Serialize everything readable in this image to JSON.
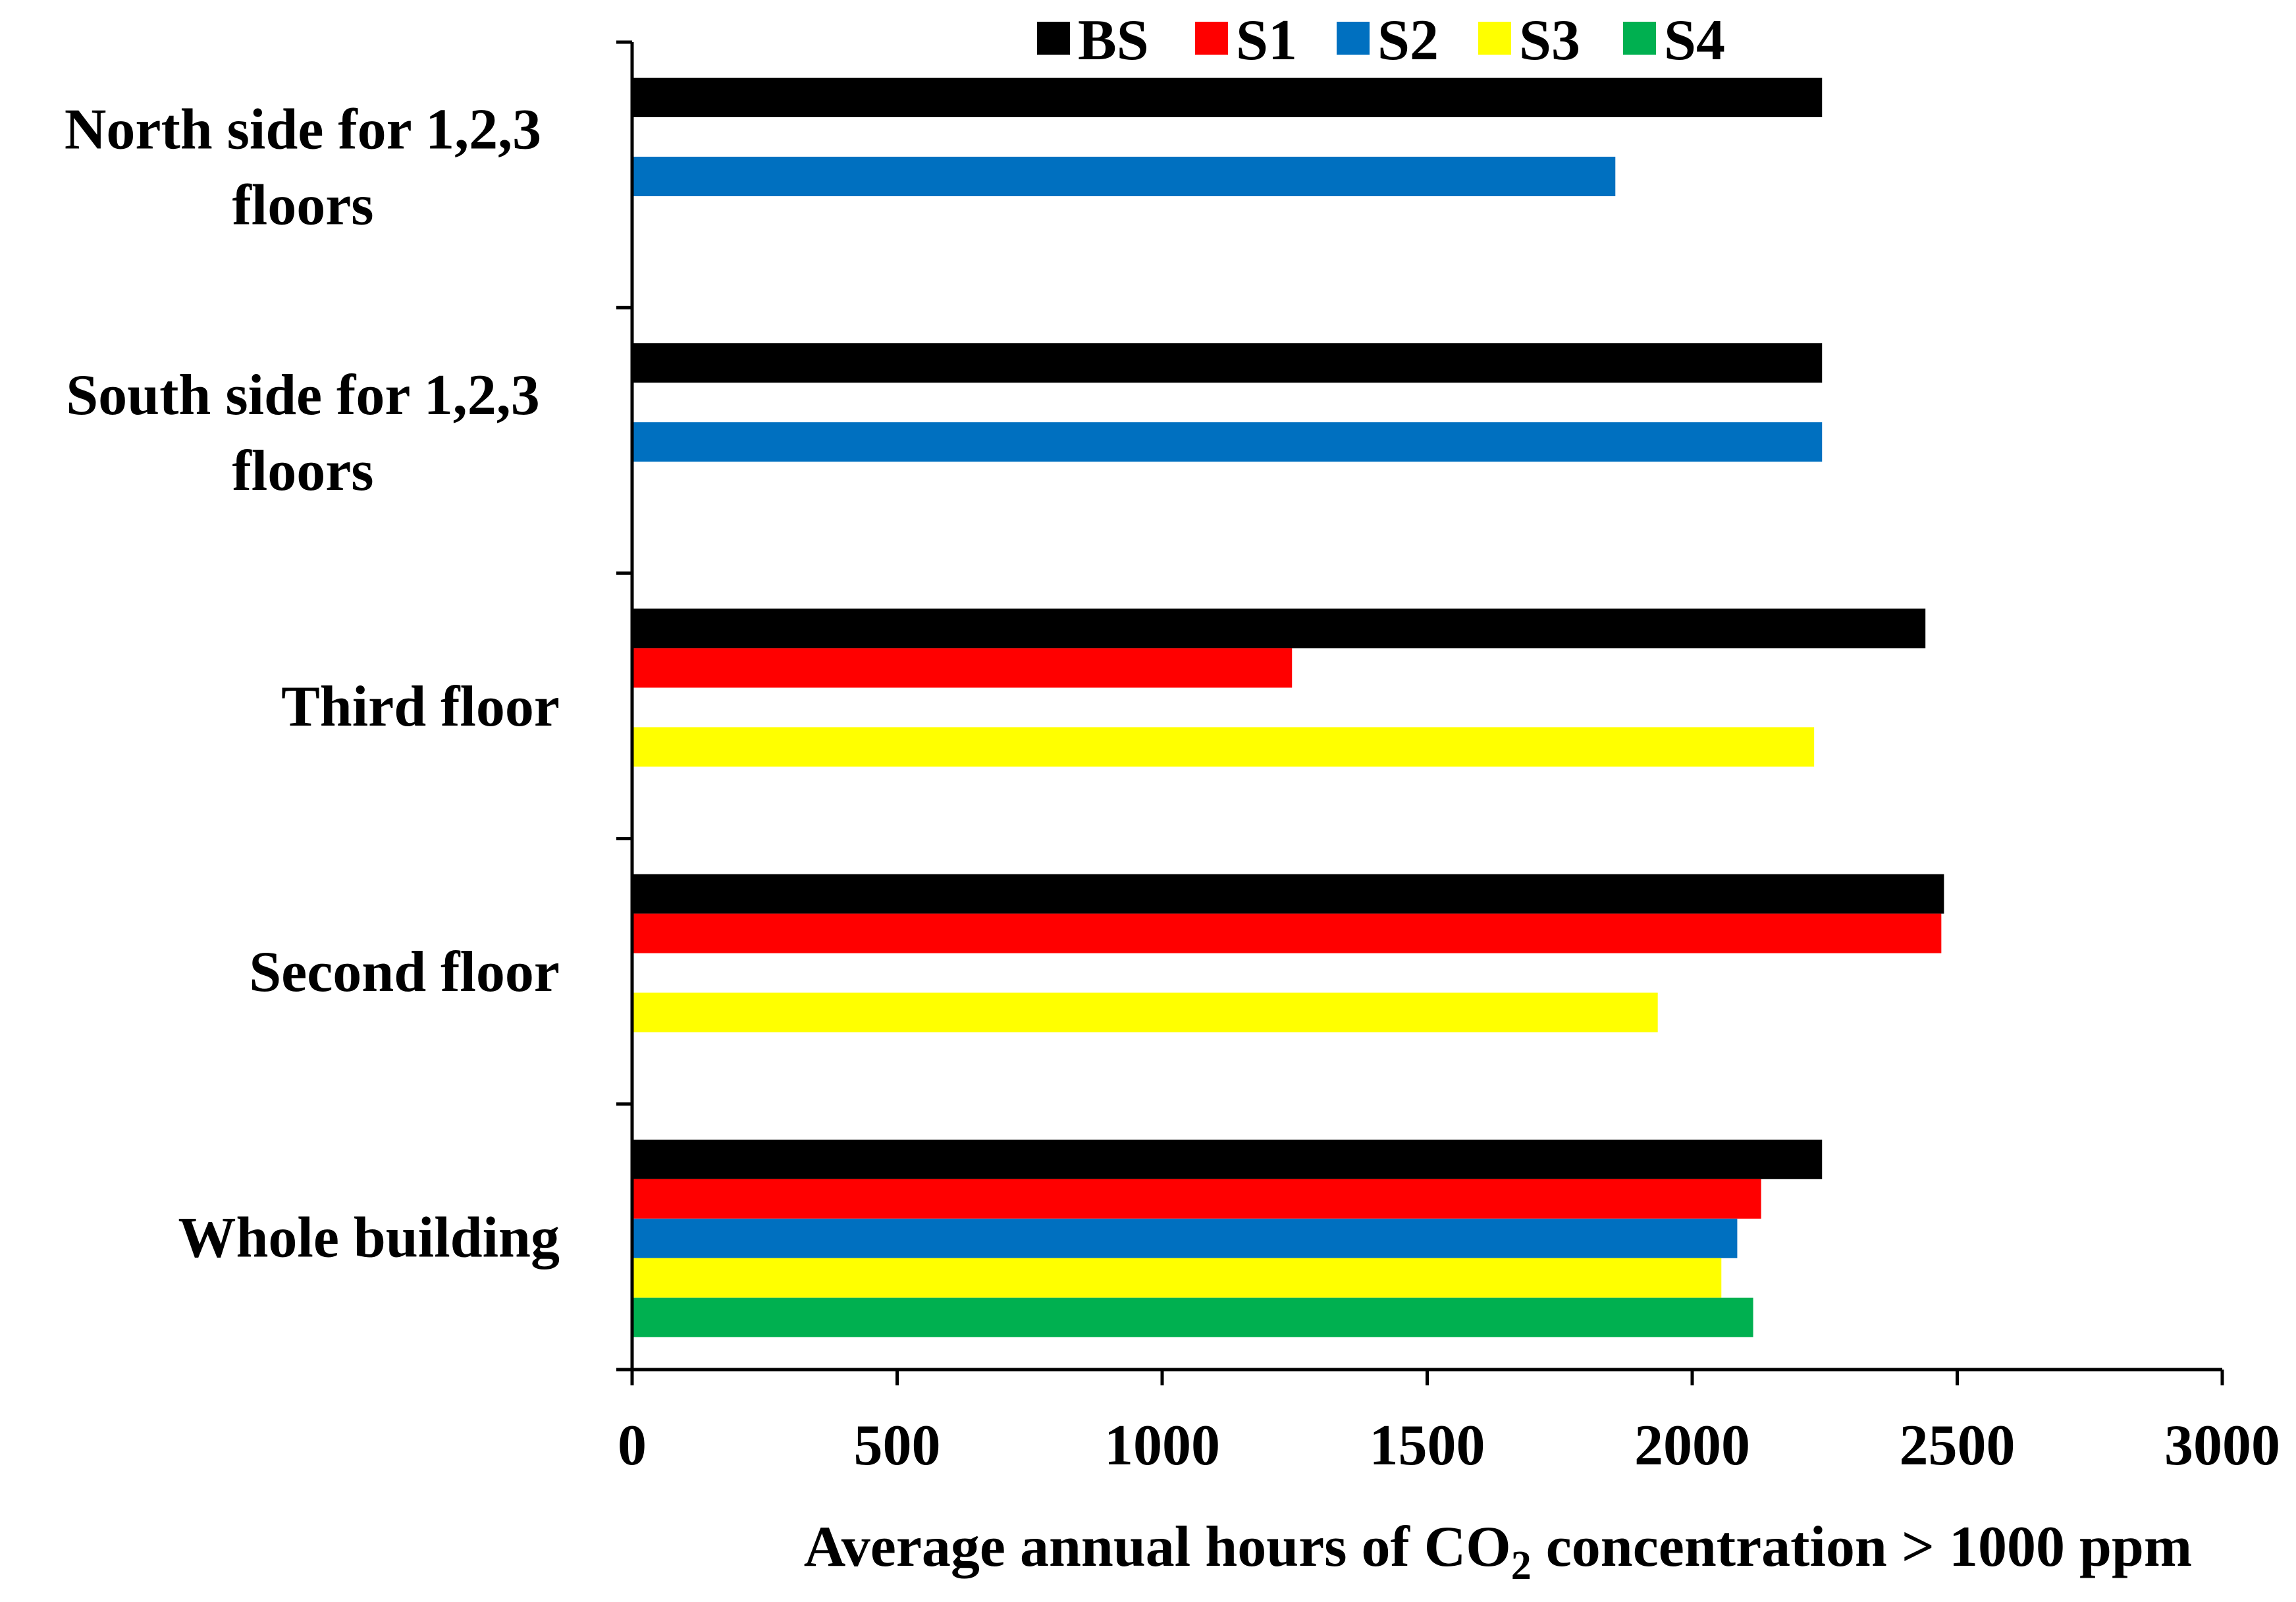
{
  "chart_data": {
    "type": "bar",
    "orientation": "horizontal",
    "title": "",
    "xlabel": {
      "prefix": "Average annual hours of CO",
      "subscript": "2",
      "suffix": " concentration > 1000 ppm"
    },
    "ylabel": "",
    "xlim": [
      0,
      3000
    ],
    "xticks": [
      "0",
      "500",
      "1000",
      "1500",
      "2000",
      "2500",
      "3000"
    ],
    "categories": [
      {
        "line1": "North side for 1,2,3",
        "line2": "floors"
      },
      {
        "line1": "South side for 1,2,3",
        "line2": "floors"
      },
      {
        "line1": "Third floor",
        "line2": ""
      },
      {
        "line1": "Second floor",
        "line2": ""
      },
      {
        "line1": "Whole building",
        "line2": ""
      }
    ],
    "series": [
      {
        "name": "BS",
        "color": "#000000",
        "values": [
          2245,
          2245,
          2440,
          2475,
          2245
        ]
      },
      {
        "name": "S1",
        "color": "#ff0000",
        "values": [
          null,
          null,
          1245,
          2470,
          2130
        ]
      },
      {
        "name": "S2",
        "color": "#0070c0",
        "values": [
          1855,
          2245,
          null,
          null,
          2085
        ]
      },
      {
        "name": "S3",
        "color": "#ffff00",
        "values": [
          null,
          null,
          2230,
          1935,
          2055
        ]
      },
      {
        "name": "S4",
        "color": "#00b050",
        "values": [
          null,
          null,
          null,
          null,
          2115
        ]
      }
    ],
    "grid": false,
    "legend_position": "top"
  }
}
